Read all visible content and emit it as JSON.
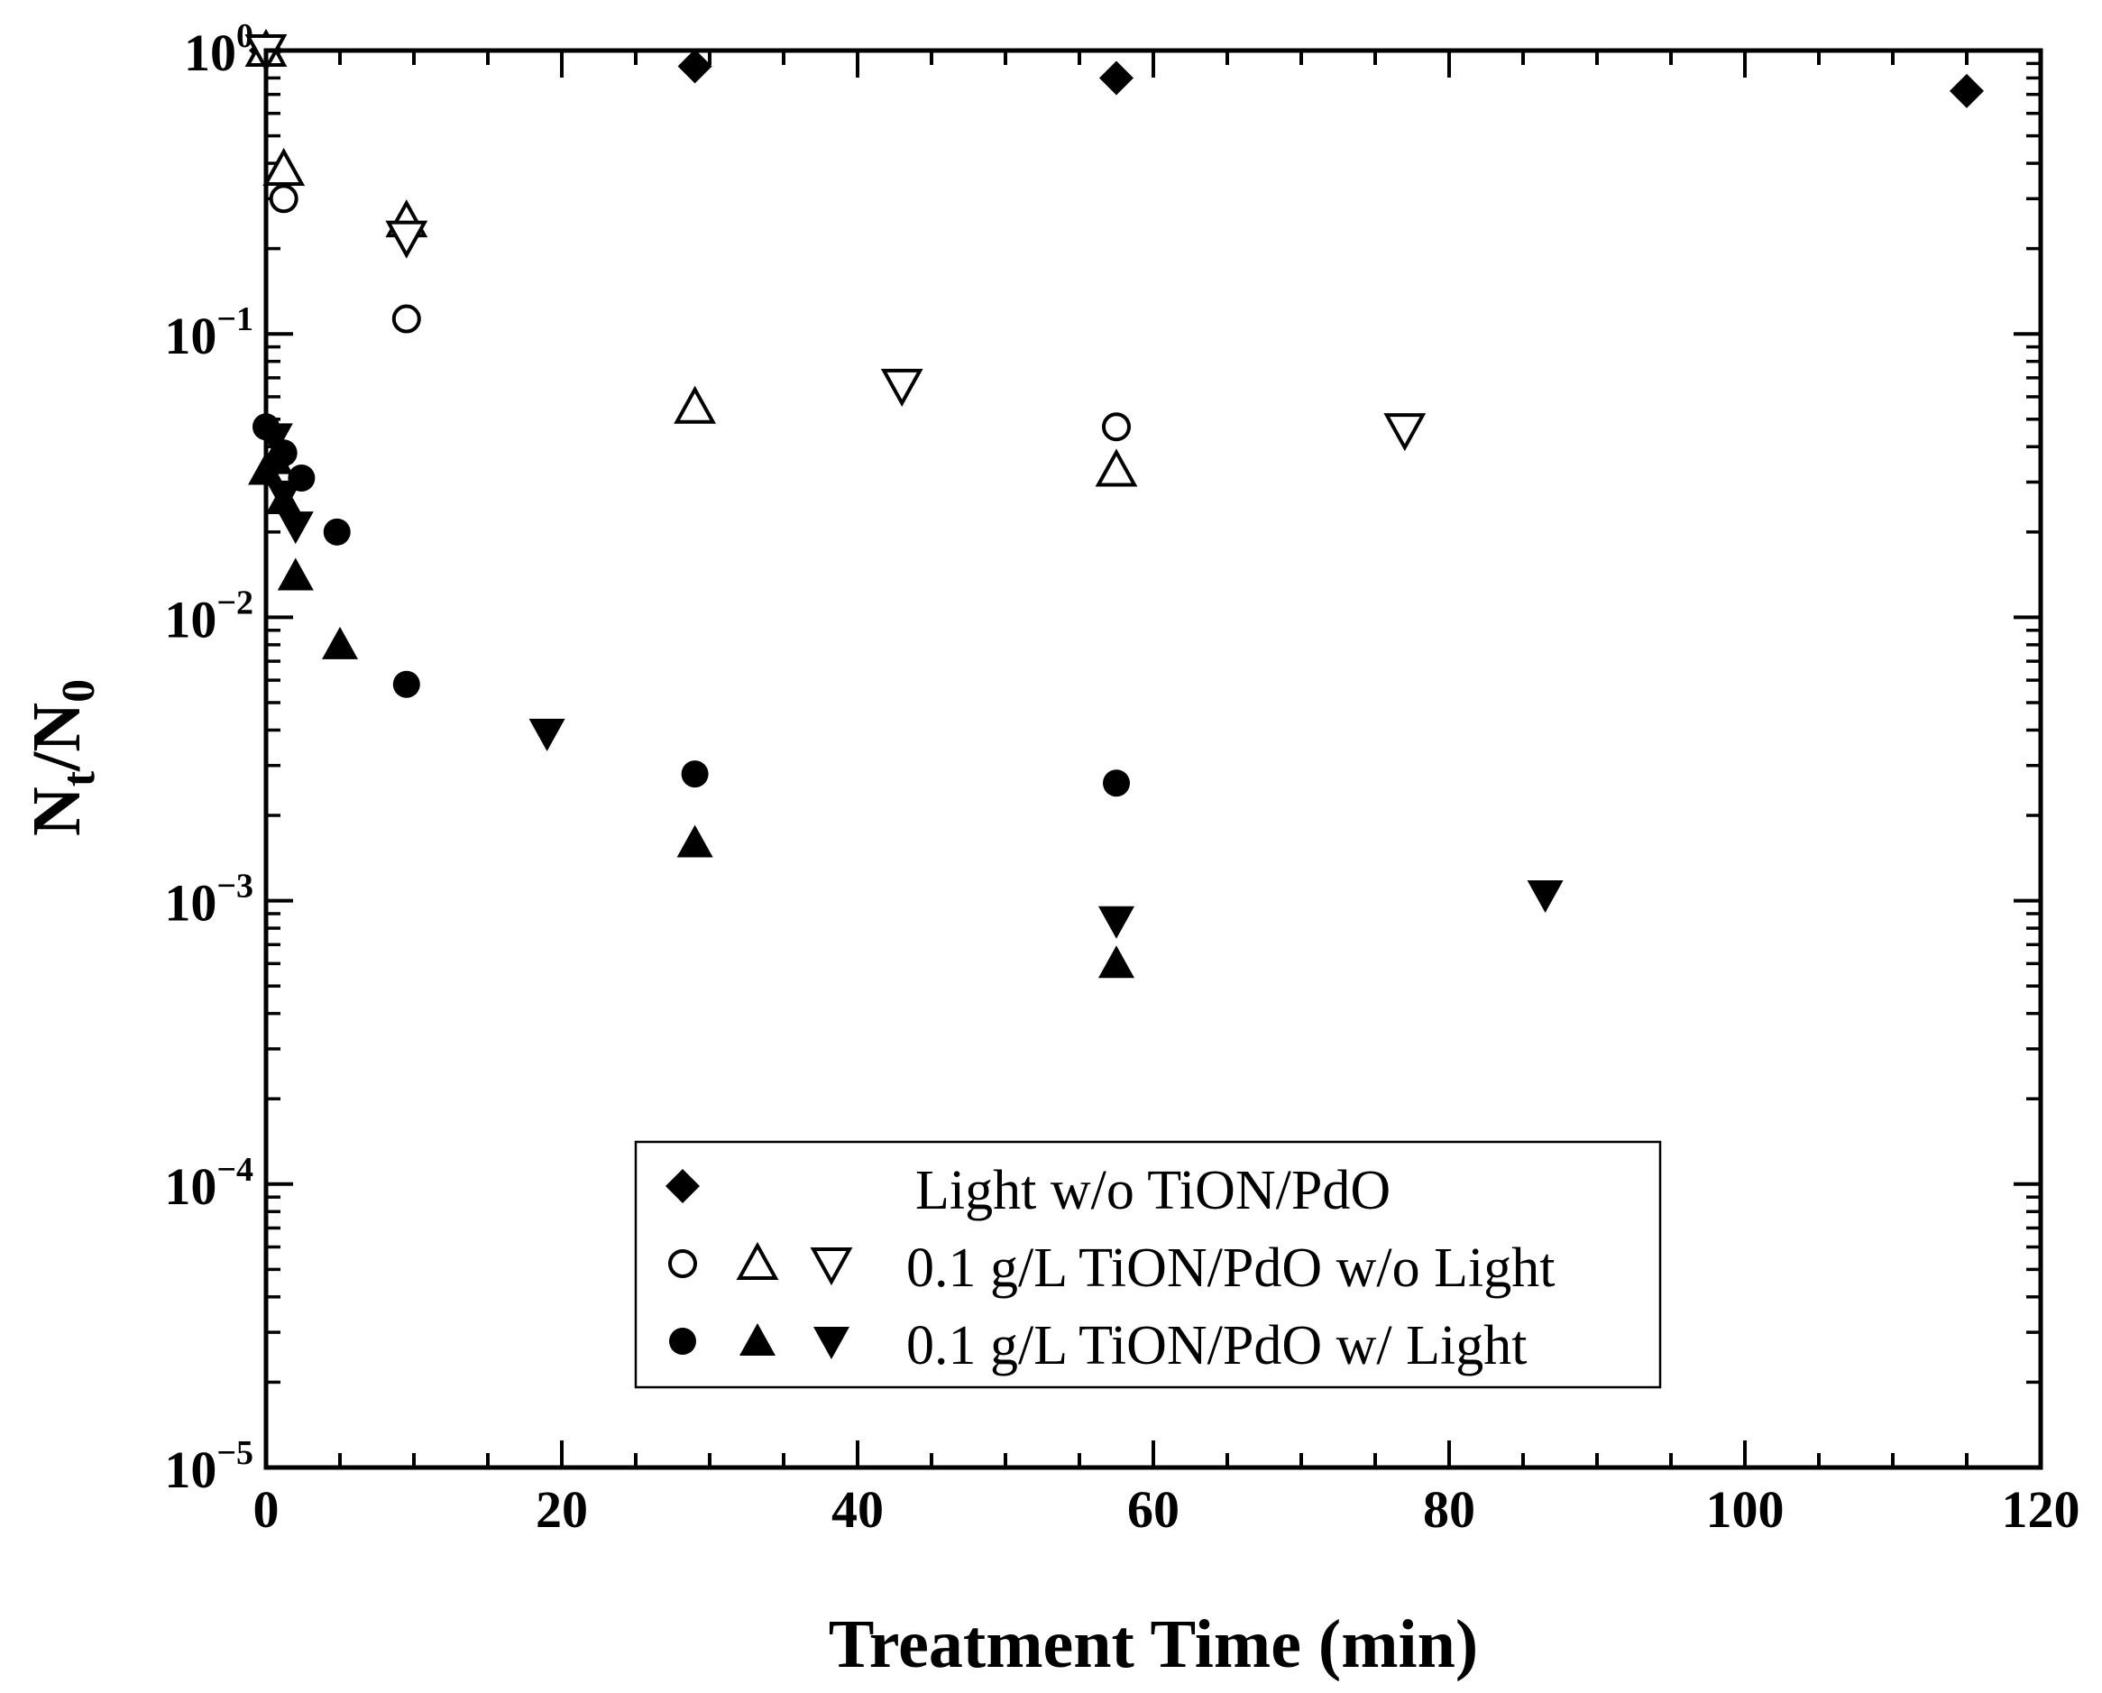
{
  "chart_data": {
    "type": "scatter",
    "title": "",
    "xlabel": "Treatment Time (min)",
    "ylabel": "Nt/N0",
    "ylabel_main": "N",
    "ylabel_sub1": "t",
    "ylabel_slash": "/N",
    "ylabel_sub2": "0",
    "xlim": [
      0,
      120
    ],
    "ylim": [
      1e-05,
      1
    ],
    "yscale": "log",
    "x_ticks": [
      {
        "value": 0,
        "label": "0"
      },
      {
        "value": 20,
        "label": "20"
      },
      {
        "value": 40,
        "label": "40"
      },
      {
        "value": 60,
        "label": "60"
      },
      {
        "value": 80,
        "label": "80"
      },
      {
        "value": 100,
        "label": "100"
      },
      {
        "value": 120,
        "label": "120"
      }
    ],
    "y_ticks": [
      {
        "value": 1,
        "base": "10",
        "exp": "0"
      },
      {
        "value": 0.1,
        "base": "10",
        "exp": "−1"
      },
      {
        "value": 0.01,
        "base": "10",
        "exp": "−2"
      },
      {
        "value": 0.001,
        "base": "10",
        "exp": "−3"
      },
      {
        "value": 0.0001,
        "base": "10",
        "exp": "−4"
      },
      {
        "value": 1e-05,
        "base": "10",
        "exp": "−5"
      }
    ],
    "legend_position": "lower-center",
    "legend": [
      {
        "markers": [
          "diamond-filled"
        ],
        "label": "Light w/o TiON/PdO"
      },
      {
        "markers": [
          "circle-open",
          "triangle-up-open",
          "triangle-down-open"
        ],
        "label": "0.1 g/L TiON/PdO w/o Light"
      },
      {
        "markers": [
          "circle-filled",
          "triangle-up-filled",
          "triangle-down-filled"
        ],
        "label": "0.1 g/L TiON/PdO w/ Light"
      }
    ],
    "series": [
      {
        "name": "Light w/o TiON/PdO",
        "marker": "diamond-filled",
        "x": [
          0,
          29,
          57.5,
          115
        ],
        "y": [
          1.0,
          0.88,
          0.8,
          0.72
        ]
      },
      {
        "name": "0.1 g/L TiON/PdO w/o Light (circle)",
        "marker": "circle-open",
        "x": [
          0,
          1.2,
          9.5,
          57.5
        ],
        "y": [
          1.0,
          0.3,
          0.113,
          0.047
        ]
      },
      {
        "name": "0.1 g/L TiON/PdO w/o Light (triangle up)",
        "marker": "triangle-up-open",
        "x": [
          0,
          1.2,
          9.5,
          29,
          57.5
        ],
        "y": [
          1.0,
          0.38,
          0.25,
          0.055,
          0.033
        ]
      },
      {
        "name": "0.1 g/L TiON/PdO w/o Light (triangle down)",
        "marker": "triangle-down-open",
        "x": [
          0,
          9.5,
          43,
          77
        ],
        "y": [
          1.0,
          0.22,
          0.066,
          0.046
        ]
      },
      {
        "name": "0.1 g/L TiON/PdO w/ Light (circle)",
        "marker": "circle-filled",
        "x": [
          0,
          1.2,
          2.4,
          4.8,
          9.5,
          29,
          57.5
        ],
        "y": [
          0.047,
          0.038,
          0.031,
          0.02,
          0.0058,
          0.0028,
          0.0026
        ]
      },
      {
        "name": "0.1 g/L TiON/PdO w/ Light (triangle up)",
        "marker": "triangle-up-filled",
        "x": [
          0,
          0.6,
          1.2,
          2.0,
          5.0,
          29,
          57.5
        ],
        "y": [
          0.033,
          0.036,
          0.026,
          0.014,
          0.008,
          0.0016,
          0.0006
        ]
      },
      {
        "name": "0.1 g/L TiON/PdO w/ Light (triangle down)",
        "marker": "triangle-down-filled",
        "x": [
          0.6,
          1.2,
          2.0,
          19,
          57.5,
          86.5
        ],
        "y": [
          0.043,
          0.027,
          0.021,
          0.0039,
          0.00085,
          0.00105
        ]
      }
    ]
  }
}
